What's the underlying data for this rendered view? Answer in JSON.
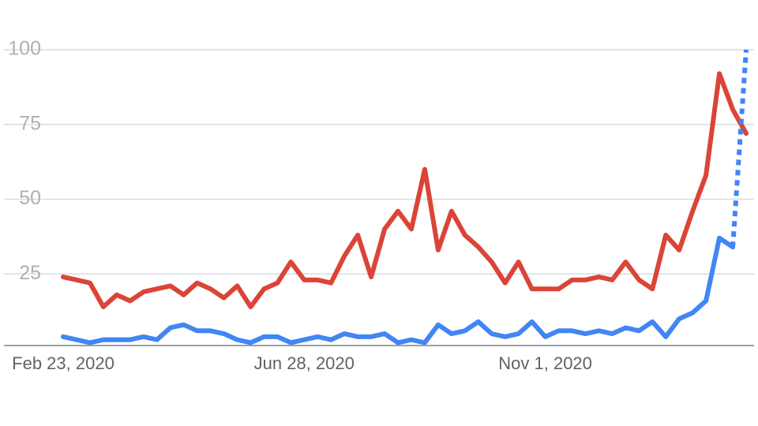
{
  "chart_data": {
    "type": "line",
    "categories": [
      "Feb 23, 2020",
      null,
      null,
      null,
      null,
      null,
      null,
      null,
      null,
      null,
      null,
      null,
      null,
      null,
      null,
      null,
      null,
      null,
      "Jun 28, 2020",
      null,
      null,
      null,
      null,
      null,
      null,
      null,
      null,
      null,
      null,
      null,
      null,
      null,
      null,
      null,
      null,
      null,
      "Nov 1, 2020",
      null,
      null,
      null,
      null,
      null,
      null,
      null,
      null,
      null,
      null,
      null,
      null,
      null,
      null,
      null
    ],
    "series": [
      {
        "color": "#db4437",
        "values": [
          24,
          23,
          22,
          14,
          18,
          16,
          19,
          20,
          21,
          18,
          22,
          20,
          17,
          21,
          14,
          20,
          22,
          29,
          23,
          23,
          22,
          31,
          38,
          24,
          40,
          46,
          40,
          60,
          33,
          46,
          38,
          34,
          29,
          22,
          29,
          20,
          20,
          20,
          23,
          23,
          24,
          23,
          29,
          23,
          20,
          38,
          33,
          46,
          58,
          92,
          80,
          72
        ]
      },
      {
        "color": "#4285f4",
        "dotted_last_segment": true,
        "values": [
          4,
          3,
          2,
          3,
          3,
          3,
          4,
          3,
          7,
          8,
          6,
          6,
          5,
          3,
          2,
          4,
          4,
          2,
          3,
          4,
          3,
          5,
          4,
          4,
          5,
          2,
          3,
          2,
          8,
          5,
          6,
          9,
          5,
          4,
          5,
          9,
          4,
          6,
          6,
          5,
          6,
          5,
          7,
          6,
          9,
          4,
          10,
          12,
          16,
          37,
          34,
          100
        ]
      }
    ],
    "ylim": [
      0,
      100
    ],
    "yticks": [
      25,
      50,
      75,
      100
    ],
    "grid": true
  }
}
